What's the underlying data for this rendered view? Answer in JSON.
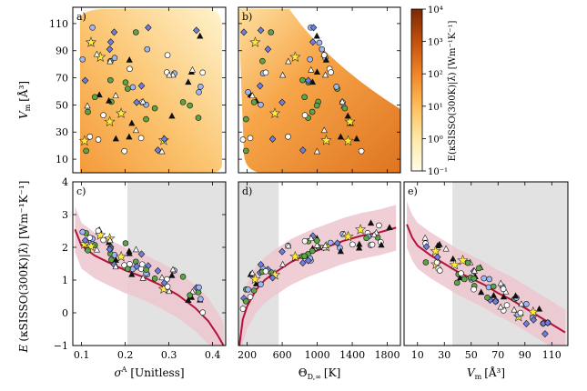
{
  "chart_data": [
    {
      "panel": "a",
      "type": "scatter+heatmap",
      "xlabel": "",
      "ylabel": "Vm [Å³]",
      "xlim": [
        0.08,
        0.43
      ],
      "ylim": [
        0,
        122
      ],
      "yticks": [
        10,
        30,
        50,
        70,
        90,
        110
      ],
      "xticks": [
        0.1,
        0.2,
        0.3,
        0.4
      ],
      "colormap": "YlOrBr (log scale)",
      "note": "heatmap of E(κ^SISSO(300K)|λ) over σA and Vm; points show materials"
    },
    {
      "panel": "b",
      "type": "scatter+heatmap",
      "xlabel": "",
      "ylabel": "",
      "xlim": [
        100,
        1950
      ],
      "ylim": [
        0,
        122
      ],
      "xticks": [
        200,
        600,
        1000,
        1400,
        1800
      ],
      "yticks": [
        10,
        30,
        50,
        70,
        90,
        110
      ]
    },
    {
      "panel": "colorbar",
      "type": "heatmap",
      "label": "E_λ̂(κSISSO(300K)|λ̂) [Wm⁻¹K⁻¹]",
      "tick_labels": [
        "10⁻¹",
        "10⁰",
        "10¹",
        "10²",
        "10³",
        "10⁴"
      ],
      "range_log10": [
        -1,
        4
      ]
    },
    {
      "panel": "c",
      "type": "line+scatter",
      "xlabel": "σA [Unitless]",
      "ylabel": "E_λ̂(κSISSO(300K)|λ̂) [Wm⁻¹K⁻¹]",
      "xlim": [
        0.08,
        0.43
      ],
      "ylim": [
        -1,
        4
      ],
      "xticks": [
        0.1,
        0.2,
        0.3,
        0.4
      ],
      "yticks": [
        -1,
        0,
        1,
        2,
        3,
        4
      ],
      "shaded_x_range": [
        0.205,
        0.43
      ],
      "curve": {
        "x": [
          0.085,
          0.1,
          0.13,
          0.16,
          0.2,
          0.24,
          0.28,
          0.32,
          0.36,
          0.39,
          0.41,
          0.425
        ],
        "y": [
          2.55,
          2.05,
          1.75,
          1.55,
          1.3,
          1.1,
          0.85,
          0.55,
          0.15,
          -0.25,
          -0.65,
          -1.0
        ]
      }
    },
    {
      "panel": "d",
      "type": "line+scatter",
      "xlabel": "ΘD,∞ [K]",
      "xlim": [
        100,
        1950
      ],
      "ylim": [
        -1,
        4
      ],
      "xticks": [
        200,
        600,
        1000,
        1400,
        1800
      ],
      "shaded_x_range": [
        100,
        560
      ],
      "curve": {
        "x": [
          110,
          150,
          200,
          300,
          400,
          500,
          700,
          900,
          1100,
          1300,
          1500,
          1700,
          1900
        ],
        "y": [
          -1.0,
          -0.2,
          0.2,
          0.7,
          1.0,
          1.2,
          1.55,
          1.8,
          2.0,
          2.2,
          2.35,
          2.45,
          2.6
        ]
      }
    },
    {
      "panel": "e",
      "type": "line+scatter",
      "xlabel": "Vm [Å³]",
      "xlim": [
        0,
        122
      ],
      "ylim": [
        -1,
        4
      ],
      "xticks": [
        10,
        30,
        50,
        70,
        90,
        110
      ],
      "shaded_x_range": [
        36,
        122
      ],
      "curve": {
        "x": [
          2,
          6,
          10,
          20,
          30,
          40,
          50,
          60,
          70,
          80,
          90,
          100,
          110,
          120
        ],
        "y": [
          2.7,
          2.3,
          2.05,
          1.75,
          1.5,
          1.25,
          1.05,
          0.85,
          0.6,
          0.4,
          0.15,
          -0.1,
          -0.35,
          -0.6
        ]
      }
    }
  ],
  "figure_labels": {
    "a": "a)",
    "b": "b)",
    "c": "c)",
    "d": "d)",
    "e": "e)",
    "y_top": "V",
    "y_top_sub": "m",
    "y_top_unit": "[Å³]",
    "y_bottom_main": "E",
    "y_bottom_rest": "(κSISSO(300K)|λ̂)",
    "y_bottom_unit": "[Wm⁻¹K⁻¹]",
    "x_c_main": "σ",
    "x_c_sup": "A",
    "x_c_unit": "[Unitless]",
    "x_d_main": "Θ",
    "x_d_sub": "D,∞",
    "x_d_unit": "[K]",
    "x_e_main": "V",
    "x_e_sub": "m",
    "x_e_unit": "[Å³]",
    "cb_label": "E(κSISSO(300K)|λ̂) [Wm⁻¹K⁻¹]"
  },
  "colors": {
    "shade": "#e2e2e2",
    "band": "#edc6ce",
    "curve": "#b3123a",
    "diamond": "#6f7fe0",
    "circle_green": "#5ca448",
    "circle_blue": "#9fb6f2",
    "star": "#ffe93b",
    "triangle_dark": "#111111",
    "triangle_light": "#ffffff",
    "circle_white": "#ffffff"
  }
}
